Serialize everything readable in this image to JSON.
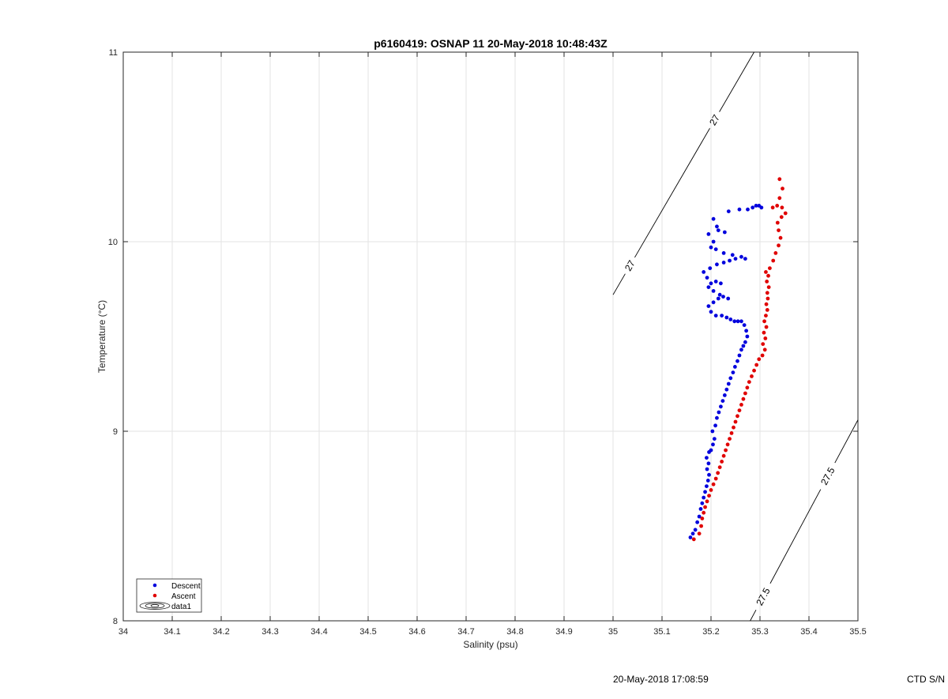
{
  "chart_data": {
    "type": "scatter",
    "title": "p6160419: OSNAP 11 20-May-2018 10:48:43Z",
    "xlabel": "Salinity (psu)",
    "ylabel": "Temperature (°C)",
    "xlim": [
      34,
      35.5
    ],
    "ylim": [
      8,
      11
    ],
    "xticks": [
      "34",
      "34.1",
      "34.2",
      "34.3",
      "34.4",
      "34.5",
      "34.6",
      "34.7",
      "34.8",
      "34.9",
      "35",
      "35.1",
      "35.2",
      "35.3",
      "35.4",
      "35.5"
    ],
    "yticks": [
      "8",
      "9",
      "10",
      "11"
    ],
    "grid": true,
    "legend": {
      "location": "bottom-left",
      "entries": [
        "Descent",
        "Ascent",
        "data1"
      ]
    },
    "contours": [
      {
        "level": "27",
        "points": [
          [
            35.0,
            9.72
          ],
          [
            35.288,
            11.0
          ]
        ],
        "labels": [
          "27",
          "27"
        ]
      },
      {
        "level": "27.5",
        "points": [
          [
            35.28,
            8.0
          ],
          [
            35.5,
            9.06
          ]
        ],
        "labels": [
          "27.5",
          "27.5"
        ]
      }
    ],
    "series": [
      {
        "name": "Descent",
        "color": "#0000dd",
        "points": [
          [
            35.158,
            8.44
          ],
          [
            35.163,
            8.46
          ],
          [
            35.168,
            8.48
          ],
          [
            35.172,
            8.52
          ],
          [
            35.176,
            8.55
          ],
          [
            35.179,
            8.59
          ],
          [
            35.182,
            8.62
          ],
          [
            35.185,
            8.65
          ],
          [
            35.188,
            8.68
          ],
          [
            35.191,
            8.71
          ],
          [
            35.194,
            8.74
          ],
          [
            35.196,
            8.77
          ],
          [
            35.192,
            8.8
          ],
          [
            35.195,
            8.83
          ],
          [
            35.191,
            8.86
          ],
          [
            35.196,
            8.89
          ],
          [
            35.2,
            8.9
          ],
          [
            35.204,
            8.93
          ],
          [
            35.207,
            8.96
          ],
          [
            35.203,
            9.0
          ],
          [
            35.209,
            9.03
          ],
          [
            35.212,
            9.07
          ],
          [
            35.216,
            9.1
          ],
          [
            35.22,
            9.13
          ],
          [
            35.224,
            9.16
          ],
          [
            35.228,
            9.19
          ],
          [
            35.232,
            9.22
          ],
          [
            35.236,
            9.25
          ],
          [
            35.24,
            9.28
          ],
          [
            35.245,
            9.31
          ],
          [
            35.249,
            9.34
          ],
          [
            35.254,
            9.37
          ],
          [
            35.258,
            9.4
          ],
          [
            35.262,
            9.43
          ],
          [
            35.266,
            9.45
          ],
          [
            35.27,
            9.47
          ],
          [
            35.274,
            9.5
          ],
          [
            35.272,
            9.53
          ],
          [
            35.268,
            9.56
          ],
          [
            35.262,
            9.58
          ],
          [
            35.255,
            9.58
          ],
          [
            35.248,
            9.58
          ],
          [
            35.24,
            9.59
          ],
          [
            35.232,
            9.6
          ],
          [
            35.222,
            9.61
          ],
          [
            35.21,
            9.61
          ],
          [
            35.2,
            9.63
          ],
          [
            35.195,
            9.66
          ],
          [
            35.205,
            9.68
          ],
          [
            35.215,
            9.7
          ],
          [
            35.225,
            9.71
          ],
          [
            35.235,
            9.7
          ],
          [
            35.218,
            9.72
          ],
          [
            35.205,
            9.74
          ],
          [
            35.195,
            9.76
          ],
          [
            35.2,
            9.78
          ],
          [
            35.21,
            9.79
          ],
          [
            35.22,
            9.78
          ],
          [
            35.192,
            9.81
          ],
          [
            35.185,
            9.84
          ],
          [
            35.198,
            9.86
          ],
          [
            35.212,
            9.88
          ],
          [
            35.226,
            9.89
          ],
          [
            35.238,
            9.9
          ],
          [
            35.25,
            9.91
          ],
          [
            35.262,
            9.92
          ],
          [
            35.27,
            9.91
          ],
          [
            35.244,
            9.93
          ],
          [
            35.226,
            9.94
          ],
          [
            35.21,
            9.96
          ],
          [
            35.2,
            9.97
          ],
          [
            35.205,
            10.0
          ],
          [
            35.195,
            10.04
          ],
          [
            35.215,
            10.06
          ],
          [
            35.228,
            10.05
          ],
          [
            35.212,
            10.08
          ],
          [
            35.205,
            10.12
          ],
          [
            35.236,
            10.16
          ],
          [
            35.258,
            10.17
          ],
          [
            35.275,
            10.17
          ],
          [
            35.285,
            10.18
          ],
          [
            35.292,
            10.19
          ],
          [
            35.298,
            10.19
          ],
          [
            35.303,
            10.18
          ]
        ]
      },
      {
        "name": "Ascent",
        "color": "#e00000",
        "points": [
          [
            35.165,
            8.43
          ],
          [
            35.176,
            8.46
          ],
          [
            35.18,
            8.5
          ],
          [
            35.182,
            8.54
          ],
          [
            35.185,
            8.57
          ],
          [
            35.188,
            8.6
          ],
          [
            35.192,
            8.63
          ],
          [
            35.196,
            8.66
          ],
          [
            35.2,
            8.69
          ],
          [
            35.205,
            8.72
          ],
          [
            35.21,
            8.75
          ],
          [
            35.214,
            8.78
          ],
          [
            35.218,
            8.81
          ],
          [
            35.222,
            8.84
          ],
          [
            35.226,
            8.87
          ],
          [
            35.23,
            8.9
          ],
          [
            35.234,
            8.93
          ],
          [
            35.238,
            8.96
          ],
          [
            35.242,
            8.99
          ],
          [
            35.246,
            9.02
          ],
          [
            35.25,
            9.05
          ],
          [
            35.254,
            9.08
          ],
          [
            35.258,
            9.11
          ],
          [
            35.262,
            9.14
          ],
          [
            35.266,
            9.17
          ],
          [
            35.27,
            9.2
          ],
          [
            35.274,
            9.23
          ],
          [
            35.278,
            9.26
          ],
          [
            35.283,
            9.29
          ],
          [
            35.288,
            9.32
          ],
          [
            35.293,
            9.35
          ],
          [
            35.298,
            9.38
          ],
          [
            35.305,
            9.4
          ],
          [
            35.31,
            9.43
          ],
          [
            35.306,
            9.46
          ],
          [
            35.311,
            9.49
          ],
          [
            35.308,
            9.52
          ],
          [
            35.313,
            9.55
          ],
          [
            35.309,
            9.58
          ],
          [
            35.312,
            9.61
          ],
          [
            35.315,
            9.64
          ],
          [
            35.313,
            9.67
          ],
          [
            35.316,
            9.7
          ],
          [
            35.315,
            9.73
          ],
          [
            35.318,
            9.76
          ],
          [
            35.314,
            9.79
          ],
          [
            35.317,
            9.82
          ],
          [
            35.312,
            9.84
          ],
          [
            35.32,
            9.86
          ],
          [
            35.327,
            9.9
          ],
          [
            35.332,
            9.94
          ],
          [
            35.338,
            9.98
          ],
          [
            35.342,
            10.02
          ],
          [
            35.338,
            10.06
          ],
          [
            35.336,
            10.1
          ],
          [
            35.344,
            10.13
          ],
          [
            35.352,
            10.15
          ],
          [
            35.345,
            10.18
          ],
          [
            35.335,
            10.19
          ],
          [
            35.326,
            10.18
          ],
          [
            35.34,
            10.23
          ],
          [
            35.346,
            10.28
          ],
          [
            35.34,
            10.33
          ]
        ]
      }
    ]
  },
  "footer": {
    "timestamp": "20-May-2018 17:08:59",
    "device": "CTD S/N"
  }
}
